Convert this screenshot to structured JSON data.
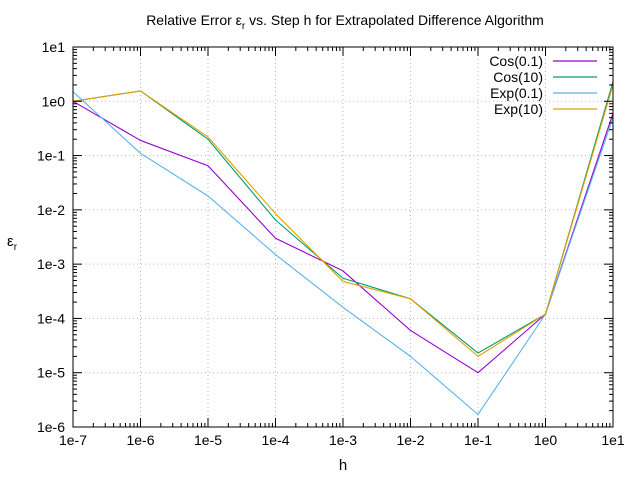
{
  "chart_data": {
    "type": "line",
    "title": "Relative Error ε",
    "title_sub": "r",
    "title_rest": " vs. Step h for Extrapolated Difference Algorithm",
    "xlabel": "h",
    "ylabel": "ε",
    "ylabel_sub": "r",
    "x_scale": "log",
    "y_scale": "log",
    "xlim": [
      1e-07,
      10
    ],
    "ylim": [
      1e-06,
      10
    ],
    "grid": true,
    "legend_position": "top-right",
    "x_ticks": [
      1e-07,
      1e-06,
      1e-05,
      0.0001,
      0.001,
      0.01,
      0.1,
      1,
      10
    ],
    "x_tick_labels": [
      "1e-7",
      "1e-6",
      "1e-5",
      "1e-4",
      "1e-3",
      "1e-2",
      "1e-1",
      "1e0",
      "1e1"
    ],
    "y_ticks": [
      1e-06,
      1e-05,
      0.0001,
      0.001,
      0.01,
      0.1,
      1,
      10
    ],
    "y_tick_labels": [
      "1e-6",
      "1e-5",
      "1e-4",
      "1e-3",
      "1e-2",
      "1e-1",
      "1e0",
      "1e1"
    ],
    "x": [
      1e-07,
      1e-06,
      1e-05,
      0.0001,
      0.001,
      0.01,
      0.1,
      1,
      10
    ],
    "series": [
      {
        "name": "Cos(0.1)",
        "color": "#9400d3",
        "values": [
          1.0,
          0.19,
          0.065,
          0.003,
          0.00075,
          6e-05,
          1e-05,
          0.00012,
          0.6
        ]
      },
      {
        "name": "Cos(10)",
        "color": "#009e73",
        "values": [
          1.0,
          1.55,
          0.2,
          0.0065,
          0.00055,
          0.00023,
          2.3e-05,
          0.00012,
          2.3
        ]
      },
      {
        "name": "Exp(0.1)",
        "color": "#56b4e9",
        "values": [
          1.5,
          0.11,
          0.018,
          0.0015,
          0.00016,
          2e-05,
          1.7e-06,
          0.00012,
          0.5
        ]
      },
      {
        "name": "Exp(10)",
        "color": "#e69f00",
        "values": [
          1.0,
          1.55,
          0.22,
          0.0085,
          0.00048,
          0.00023,
          2e-05,
          0.00012,
          2.0
        ]
      }
    ]
  }
}
